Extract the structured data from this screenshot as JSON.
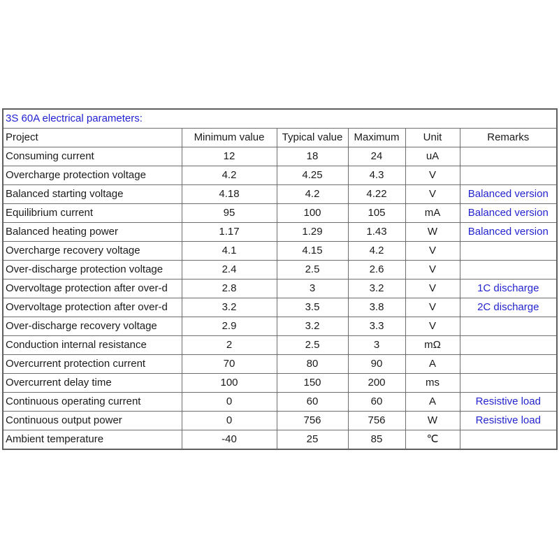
{
  "colors": {
    "title_blue": "#1f1fd2",
    "remark_blue": "#2424cf",
    "border_gray": "#6e6e6e",
    "text_dark": "#1b1b1b",
    "background": "#ffffff"
  },
  "table": {
    "title": "3S 60A electrical parameters:",
    "headers": [
      "Project",
      "Minimum value",
      "Typical value",
      "Maximum",
      "Unit",
      "Remarks"
    ],
    "rows": [
      {
        "project": "Consuming current",
        "min": "12",
        "typ": "18",
        "max": "24",
        "unit": "uA",
        "remark": ""
      },
      {
        "project": "Overcharge protection voltage",
        "min": "4.2",
        "typ": "4.25",
        "max": "4.3",
        "unit": "V",
        "remark": ""
      },
      {
        "project": "Balanced starting voltage",
        "min": "4.18",
        "typ": "4.2",
        "max": "4.22",
        "unit": "V",
        "remark": "Balanced version"
      },
      {
        "project": "Equilibrium current",
        "min": "95",
        "typ": "100",
        "max": "105",
        "unit": "mA",
        "remark": "Balanced version"
      },
      {
        "project": "Balanced heating power",
        "min": "1.17",
        "typ": "1.29",
        "max": "1.43",
        "unit": "W",
        "remark": "Balanced version"
      },
      {
        "project": "Overcharge recovery voltage",
        "min": "4.1",
        "typ": "4.15",
        "max": "4.2",
        "unit": "V",
        "remark": ""
      },
      {
        "project": "Over-discharge protection voltage",
        "min": "2.4",
        "typ": "2.5",
        "max": "2.6",
        "unit": "V",
        "remark": ""
      },
      {
        "project": "Overvoltage protection after over-d",
        "min": "2.8",
        "typ": "3",
        "max": "3.2",
        "unit": "V",
        "remark": "1C discharge"
      },
      {
        "project": "Overvoltage protection after over-d",
        "min": "3.2",
        "typ": "3.5",
        "max": "3.8",
        "unit": "V",
        "remark": "2C discharge"
      },
      {
        "project": "Over-discharge recovery voltage",
        "min": "2.9",
        "typ": "3.2",
        "max": "3.3",
        "unit": "V",
        "remark": ""
      },
      {
        "project": "Conduction internal resistance",
        "min": "2",
        "typ": "2.5",
        "max": "3",
        "unit": "mΩ",
        "remark": ""
      },
      {
        "project": "Overcurrent protection current",
        "min": "70",
        "typ": "80",
        "max": "90",
        "unit": "A",
        "remark": ""
      },
      {
        "project": "Overcurrent delay time",
        "min": "100",
        "typ": "150",
        "max": "200",
        "unit": "ms",
        "remark": ""
      },
      {
        "project": "Continuous operating current",
        "min": "0",
        "typ": "60",
        "max": "60",
        "unit": "A",
        "remark": "Resistive load"
      },
      {
        "project": "Continuous output power",
        "min": "0",
        "typ": "756",
        "max": "756",
        "unit": "W",
        "remark": "Resistive load"
      },
      {
        "project": "Ambient temperature",
        "min": "-40",
        "typ": "25",
        "max": "85",
        "unit": "℃",
        "remark": ""
      }
    ]
  }
}
